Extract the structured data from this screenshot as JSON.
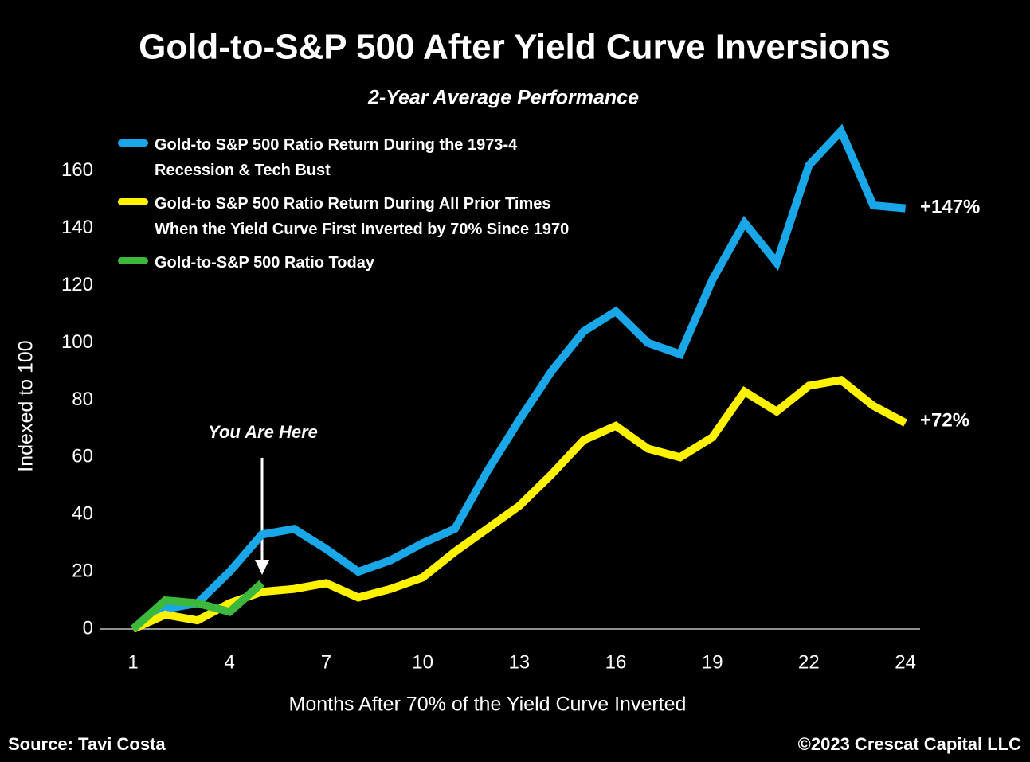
{
  "chart_data": {
    "type": "line",
    "title": "Gold-to-S&P 500 After Yield Curve Inversions",
    "subtitle": "2-Year Average Performance",
    "x_label": "Months After 70% of the Yield Curve Inverted",
    "y_label": "Indexed to 100",
    "categories": [
      "1",
      null,
      null,
      "4",
      null,
      null,
      "7",
      null,
      null,
      "10",
      null,
      null,
      "13",
      null,
      null,
      "16",
      null,
      null,
      "19",
      null,
      null,
      "22",
      null,
      null,
      "24"
    ],
    "series": [
      {
        "name": "Gold-to S&P 500 Ratio Return During the 1973-4 Recession & Tech Bust",
        "color": "#1aa7e8",
        "values": [
          0,
          7,
          9,
          20,
          33,
          35,
          28,
          20,
          24,
          30,
          35,
          55,
          73,
          90,
          104,
          111,
          100,
          96,
          122,
          142,
          128,
          162,
          174,
          148,
          147
        ]
      },
      {
        "name": "Gold-to S&P 500 Ratio Return During All Prior Times When the Yield Curve First Inverted by 70% Since 1970",
        "color": "#fff200",
        "values": [
          0,
          5,
          3,
          9,
          13,
          14,
          16,
          11,
          14,
          18,
          27,
          35,
          43,
          54,
          66,
          71,
          63,
          60,
          67,
          83,
          76,
          85,
          87,
          78,
          72
        ]
      },
      {
        "name": "Gold-to-S&P 500 Ratio Today",
        "color": "#3cb83c",
        "values": [
          0,
          10,
          9,
          6,
          16,
          null,
          null,
          null,
          null,
          null,
          null,
          null,
          null,
          null,
          null,
          null,
          null,
          null,
          null,
          null,
          null,
          null,
          null,
          null,
          null
        ]
      }
    ],
    "ylim": [
      0,
      180
    ],
    "yticks": [
      0,
      20,
      40,
      60,
      80,
      100,
      120,
      140,
      160
    ],
    "annotations": [
      "+147%",
      "+72%",
      "You Are Here"
    ],
    "source": "Source: Tavi Costa",
    "copyright": "©2023 Crescat Capital LLC"
  }
}
